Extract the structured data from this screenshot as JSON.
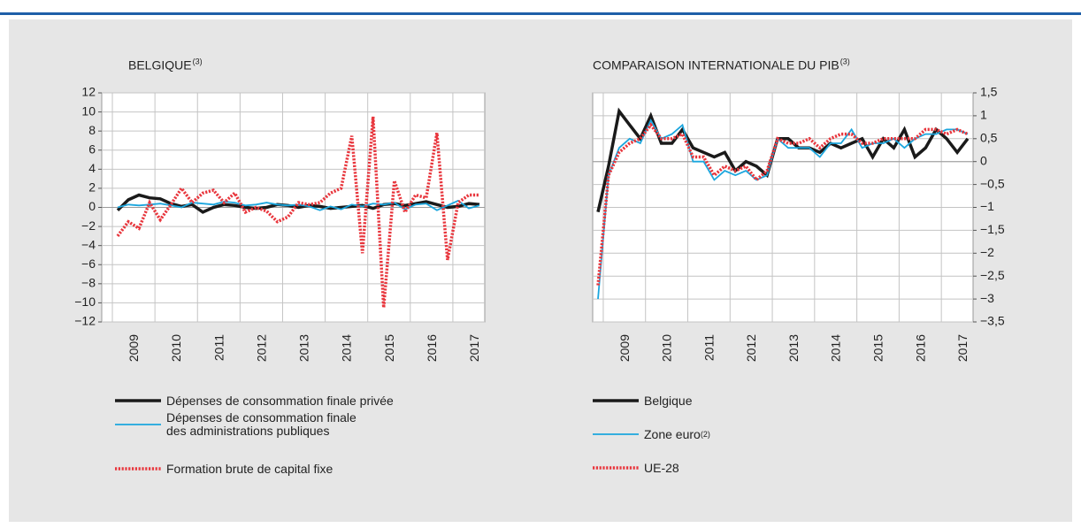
{
  "chart_data": [
    {
      "type": "line",
      "title": "BELGIQUE",
      "title_sup": "(3)",
      "y_axis_side": "left",
      "grid": true,
      "categories": [
        null,
        null,
        "2009",
        null,
        null,
        null,
        "2010",
        null,
        null,
        null,
        "2011",
        null,
        null,
        null,
        "2012",
        null,
        null,
        null,
        "2013",
        null,
        null,
        null,
        "2014",
        null,
        null,
        null,
        "2015",
        null,
        null,
        null,
        "2016",
        null,
        null,
        null,
        "2017",
        null
      ],
      "ylim": [
        -12,
        12
      ],
      "yticks": [
        {
          "value": -12,
          "label": "−12"
        },
        {
          "value": -10,
          "label": "−10"
        },
        {
          "value": -8,
          "label": "−8"
        },
        {
          "value": -6,
          "label": "−6"
        },
        {
          "value": -4,
          "label": "−4"
        },
        {
          "value": -2,
          "label": "−2"
        },
        0,
        2,
        4,
        6,
        8,
        10,
        12
      ],
      "series": [
        {
          "name": "Dépenses de consommation finale privée",
          "color": "#1a1a1a",
          "line_style": "thick",
          "values": [
            null,
            -0.3,
            0.8,
            1.3,
            1.0,
            0.9,
            0.4,
            0.1,
            0.3,
            -0.5,
            0,
            0.3,
            0.2,
            0,
            -0.1,
            0,
            0.3,
            0.2,
            0,
            0.2,
            0.1,
            -0.1,
            0,
            0.1,
            0.2,
            -0.1,
            0.3,
            0.4,
            0.2,
            0.4,
            0.6,
            0.3,
            0,
            0.1,
            0.4,
            0.3
          ]
        },
        {
          "name": "Dépenses de consommation finale\ndes administrations publiques",
          "color": "#1ba6de",
          "line_style": "thin",
          "values": [
            null,
            0,
            0.3,
            0.2,
            0.3,
            0.4,
            0.2,
            0,
            0.5,
            0.4,
            0.3,
            0.6,
            0.5,
            0.2,
            0.3,
            0.5,
            0.3,
            0.2,
            0.3,
            0.1,
            -0.3,
            0.1,
            -0.2,
            0.3,
            0.1,
            0.4,
            0.3,
            0.5,
            -0.2,
            0.3,
            0.4,
            -0.3,
            0.2,
            0.7,
            -0.1,
            0.2
          ]
        },
        {
          "name": "Formation brute de capital fixe",
          "color": "#e8363d",
          "line_style": "dotted",
          "values": [
            null,
            -3,
            -1.5,
            -2.2,
            0.5,
            -1.3,
            0.3,
            2.0,
            0.5,
            1.5,
            1.8,
            0.5,
            1.5,
            -0.5,
            0,
            -0.4,
            -1.5,
            -1,
            0.5,
            0.3,
            0.5,
            1.5,
            2,
            7.5,
            -4.8,
            9.5,
            -10.5,
            2.8,
            -0.5,
            1.3,
            1,
            7.8,
            -5.5,
            0.5,
            1.3,
            1.3
          ]
        }
      ]
    },
    {
      "type": "line",
      "title": "COMPARAISON INTERNATIONALE DU PIB",
      "title_sup": "(3)",
      "y_axis_side": "right",
      "grid": true,
      "categories": [
        null,
        null,
        "2009",
        null,
        null,
        null,
        "2010",
        null,
        null,
        null,
        "2011",
        null,
        null,
        null,
        "2012",
        null,
        null,
        null,
        "2013",
        null,
        null,
        null,
        "2014",
        null,
        null,
        null,
        "2015",
        null,
        null,
        null,
        "2016",
        null,
        null,
        null,
        "2017",
        null
      ],
      "ylim": [
        -3.5,
        1.5
      ],
      "yticks": [
        {
          "value": -3.5,
          "label": "−3,5"
        },
        {
          "value": -3,
          "label": "−3"
        },
        {
          "value": -2.5,
          "label": "−2,5"
        },
        {
          "value": -2,
          "label": "−2"
        },
        {
          "value": -1.5,
          "label": "−1,5"
        },
        {
          "value": -1,
          "label": "−1"
        },
        {
          "value": -0.5,
          "label": "−0,5"
        },
        0,
        {
          "value": 0.5,
          "label": "0,5"
        },
        1,
        {
          "value": 1.5,
          "label": "1,5"
        }
      ],
      "series": [
        {
          "name": "Belgique",
          "color": "#1a1a1a",
          "line_style": "thick",
          "values": [
            -1.1,
            -0.1,
            1.1,
            0.8,
            0.5,
            1.0,
            0.4,
            0.4,
            0.7,
            0.3,
            0.2,
            0.1,
            0.2,
            -0.2,
            0,
            -0.1,
            -0.3,
            0.5,
            0.5,
            0.3,
            0.3,
            0.2,
            0.4,
            0.3,
            0.4,
            0.5,
            0.1,
            0.5,
            0.3,
            0.7,
            0.1,
            0.3,
            0.7,
            0.5,
            0.2,
            0.5
          ]
        },
        {
          "name": "Zone euro",
          "name_sup": "(2)",
          "color": "#1ba6de",
          "line_style": "thin",
          "values": [
            -3.0,
            -0.3,
            0.3,
            0.5,
            0.4,
            0.9,
            0.5,
            0.6,
            0.8,
            0,
            0,
            -0.4,
            -0.2,
            -0.3,
            -0.2,
            -0.4,
            -0.3,
            0.5,
            0.3,
            0.3,
            0.3,
            0.1,
            0.4,
            0.4,
            0.7,
            0.3,
            0.4,
            0.4,
            0.5,
            0.3,
            0.5,
            0.6,
            0.6,
            0.7,
            0.7,
            0.6
          ]
        },
        {
          "name": "UE-28",
          "color": "#e8363d",
          "line_style": "dotted",
          "values": [
            -2.7,
            -0.3,
            0.2,
            0.4,
            0.5,
            0.8,
            0.5,
            0.5,
            0.6,
            0.1,
            0.1,
            -0.3,
            -0.1,
            -0.2,
            -0.1,
            -0.4,
            -0.2,
            0.5,
            0.4,
            0.4,
            0.5,
            0.3,
            0.5,
            0.6,
            0.6,
            0.4,
            0.4,
            0.5,
            0.5,
            0.5,
            0.5,
            0.7,
            0.7,
            0.6,
            0.7,
            0.6
          ]
        }
      ]
    }
  ]
}
